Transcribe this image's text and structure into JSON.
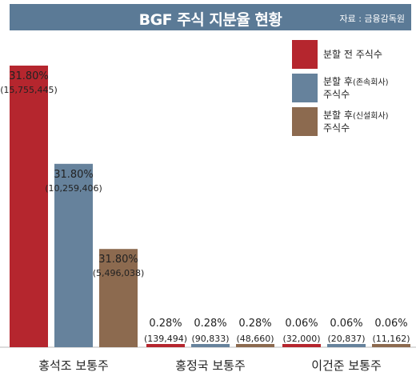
{
  "header": {
    "title": "BGF 주식 지분율 현황",
    "source": "자료 : 금융감독원"
  },
  "chart_data": {
    "type": "bar",
    "title": "BGF 주식 지분율 현황",
    "categories": [
      "홍석조 보통주",
      "홍정국 보통주",
      "이건준 보통주"
    ],
    "series": [
      {
        "name": "분할 전 주식수",
        "color": "#b5262e",
        "values": [
          15755445,
          139494,
          32000
        ],
        "percent_labels": [
          "31.80%",
          "0.28%",
          "0.06%"
        ],
        "count_labels": [
          "(15,755,445)",
          "(139,494)",
          "(32,000)"
        ]
      },
      {
        "name": "분할 후(존속회사) 주식수",
        "color": "#66829c",
        "values": [
          10259406,
          90833,
          20837
        ],
        "percent_labels": [
          "31.80%",
          "0.28%",
          "0.06%"
        ],
        "count_labels": [
          "(10,259,406)",
          "(90,833)",
          "(20,837)"
        ]
      },
      {
        "name": "분할 후(신설회사) 주식수",
        "color": "#8c6a4f",
        "values": [
          5496038,
          48660,
          11162
        ],
        "percent_labels": [
          "31.80%",
          "0.28%",
          "0.06%"
        ],
        "count_labels": [
          "(5,496,038)",
          "(48,660)",
          "(11,162)"
        ]
      }
    ],
    "legend": {
      "position": "top-right",
      "items": [
        {
          "main": "분할 전 주식수",
          "sub": "",
          "line2": ""
        },
        {
          "main": "분할 후",
          "sub": "(존속회사)",
          "line2": "주식수"
        },
        {
          "main": "분할 후",
          "sub": "(신설회사)",
          "line2": "주식수"
        }
      ]
    },
    "ylim": [
      0,
      16500000
    ],
    "grid": false
  }
}
